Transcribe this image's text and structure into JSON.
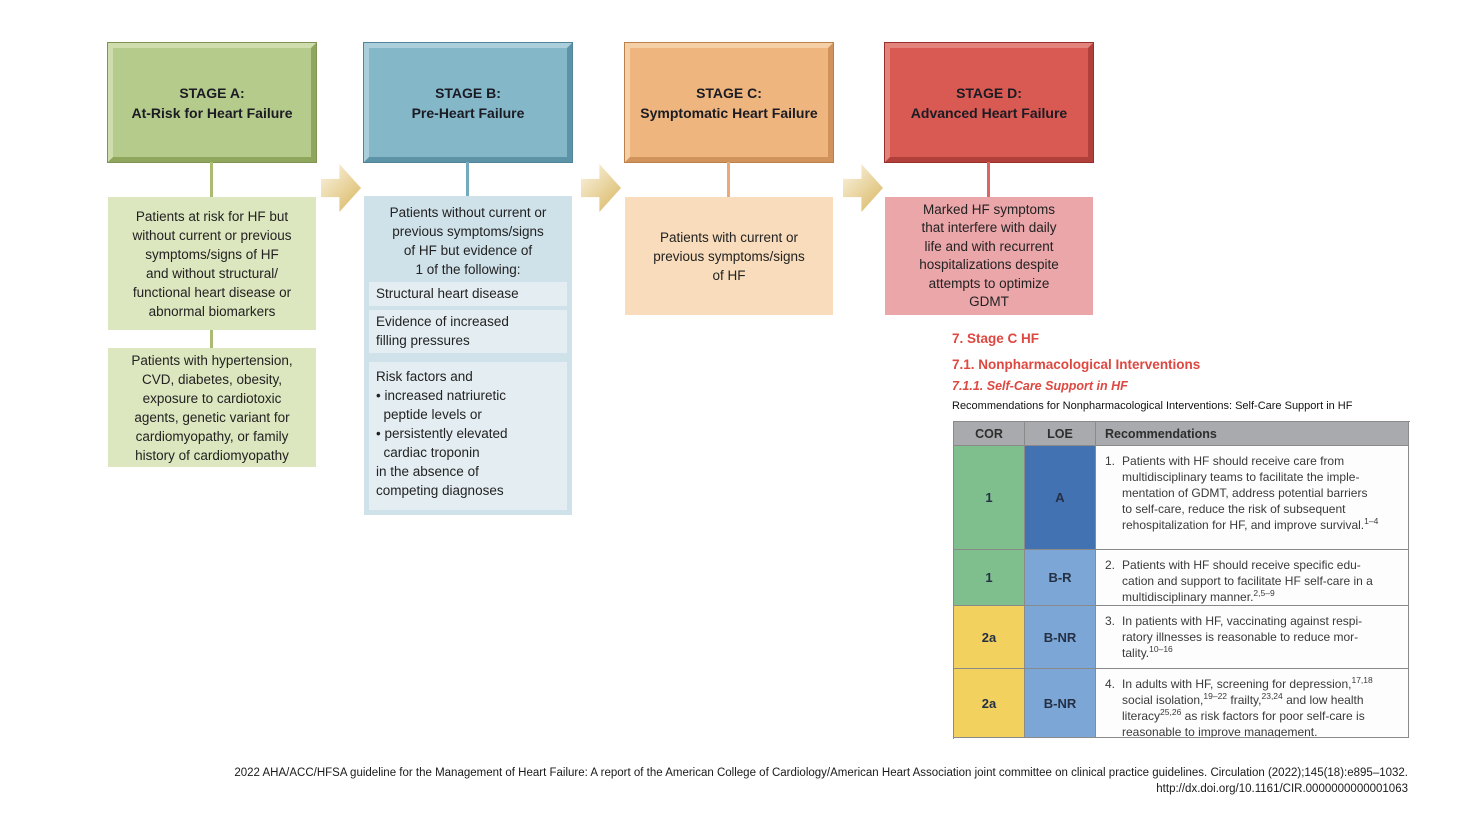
{
  "palette": {
    "stage-a-header-bg": "#b5cb8b",
    "stage-a-border-light": "#cfdcae",
    "stage-a-border-dark": "#8fa65d",
    "stage-a-outline": "#7f9352",
    "stage-a-desc-bg": "#dce6bf",
    "stage-a-line": "#a9bc72",
    "stage-b-header-bg": "#84b7c8",
    "stage-b-border-light": "#aacfdb",
    "stage-b-border-dark": "#5d93a7",
    "stage-b-outline": "#528499",
    "stage-b-desc-bg": "#cfe1e9",
    "stage-b-inner-bg": "#e4eef2",
    "stage-b-line": "#74aabe",
    "stage-c-header-bg": "#eeb67e",
    "stage-c-border-light": "#f5cfa5",
    "stage-c-border-dark": "#d0935c",
    "stage-c-outline": "#bc8148",
    "stage-c-desc-bg": "#f8dcbb",
    "stage-c-line": "#eaa97b",
    "stage-d-header-bg": "#d95a52",
    "stage-d-border-light": "#e2837c",
    "stage-d-border-dark": "#b13f3a",
    "stage-d-outline": "#992f2b",
    "stage-d-desc-bg": "#eba6aa",
    "stage-d-line": "#d96660",
    "arrow-light": "#f6ecd2",
    "arrow-dark": "#ddbf72",
    "heading-red": "#dd4840",
    "table-header-bg": "#a8aaad",
    "cor-green": "#7fbe8d",
    "cor-yellow": "#f2d15f",
    "loe-dark-blue": "#4272b2",
    "loe-light-blue": "#7ba6d6",
    "table-border": "#8a8a8a"
  },
  "stages": [
    {
      "id": "A",
      "label": "STAGE A:\nAt-Risk for Heart Failure",
      "boxes": [
        "Patients at risk for HF but\nwithout current or previous\nsymptoms/signs of HF\nand without structural/\nfunctional heart disease or\nabnormal biomarkers",
        "Patients with hypertension,\nCVD, diabetes, obesity,\nexposure to cardiotoxic\nagents, genetic variant for\ncardiomyopathy, or family\nhistory of cardiomyopathy"
      ]
    },
    {
      "id": "B",
      "label": "STAGE B:\nPre-Heart Failure",
      "intro": "Patients without current or\nprevious symptoms/signs\nof HF but evidence of\n1 of the following:",
      "criteria": [
        "Structural heart disease",
        "Evidence of increased\nfilling pressures",
        "Risk factors and\n• increased natriuretic\n  peptide levels or\n• persistently elevated\n  cardiac troponin\nin the absence of\ncompeting diagnoses"
      ]
    },
    {
      "id": "C",
      "label": "STAGE C:\nSymptomatic Heart Failure",
      "boxes": [
        "Patients with current or\nprevious symptoms/signs\nof HF"
      ]
    },
    {
      "id": "D",
      "label": "STAGE D:\nAdvanced Heart Failure",
      "boxes": [
        "Marked HF symptoms\nthat interfere with daily\nlife and with recurrent\nhospitalizations despite\nattempts to optimize\nGDMT"
      ]
    }
  ],
  "section": {
    "h1": "7. Stage C HF",
    "h2": "7.1. Nonpharmacological Interventions",
    "h3": "7.1.1. Self-Care Support in HF",
    "table_caption": "Recommendations for Nonpharmacological Interventions: Self-Care Support in HF"
  },
  "table": {
    "headers": [
      "COR",
      "LOE",
      "Recommendations"
    ],
    "rows": [
      {
        "cor": "1",
        "cor_color": "green",
        "loe": "A",
        "loe_color": "dark-blue",
        "num": "1.",
        "text": "Patients with HF should receive care from\nmultidisciplinary teams to facilitate the imple-\nmentation of GDMT, address potential barriers\nto self-care, reduce the risk of subsequent\nrehospitalization for HF, and improve survival.^{1–4}"
      },
      {
        "cor": "1",
        "cor_color": "green",
        "loe": "B-R",
        "loe_color": "light-blue",
        "num": "2.",
        "text": "Patients with HF should receive specific edu-\ncation and support to facilitate HF self-care in a\nmultidisciplinary manner.^{2,5–9}"
      },
      {
        "cor": "2a",
        "cor_color": "yellow",
        "loe": "B-NR",
        "loe_color": "light-blue",
        "num": "3.",
        "text": "In patients with HF, vaccinating against respi-\nratory illnesses is reasonable to reduce mor-\ntality.^{10–16}"
      },
      {
        "cor": "2a",
        "cor_color": "yellow",
        "loe": "B-NR",
        "loe_color": "light-blue",
        "num": "4.",
        "text": "In adults with HF, screening for depression,^{17,18}\nsocial isolation,^{19–22} frailty,^{23,24} and low health\nliteracy^{25,26} as risk factors for poor self-care is\nreasonable to improve management."
      }
    ]
  },
  "footer": {
    "line1": "2022 AHA/ACC/HFSA guideline for the Management of Heart Failure: A report of the American College of Cardiology/American Heart Association joint committee on clinical practice guidelines. Circulation (2022);145(18):e895–1032.",
    "line2": "http://dx.doi.org/10.1161/CIR.0000000000001063"
  }
}
